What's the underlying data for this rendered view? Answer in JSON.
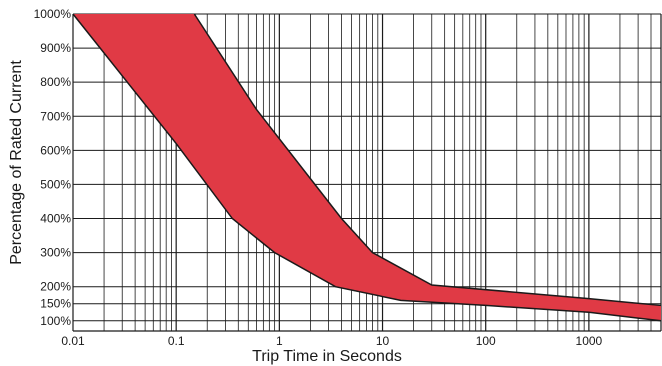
{
  "chart_data": {
    "type": "area",
    "title": "",
    "xlabel": "Trip Time in Seconds",
    "ylabel": "Percentage of Rated Current",
    "x_scale": "log",
    "xlim": [
      0.01,
      5000
    ],
    "x_ticks": [
      0.01,
      0.1,
      1,
      10,
      100,
      1000
    ],
    "x_tick_labels": [
      "0.01",
      "0.1",
      "1",
      "10",
      "100",
      "1000"
    ],
    "ylim": [
      100,
      1000
    ],
    "y_ticks": [
      100,
      150,
      200,
      300,
      400,
      500,
      600,
      700,
      800,
      900,
      1000
    ],
    "y_tick_labels": [
      "100%",
      "150%",
      "200%",
      "300%",
      "400%",
      "500%",
      "600%",
      "700%",
      "800%",
      "900%",
      "1000%"
    ],
    "grid": true,
    "fill_color": "#e03a45",
    "line_color": "#1a1a1a",
    "series": [
      {
        "values": [
          {
            "x": 0.01,
            "y": 1000
          },
          {
            "x": 0.1,
            "y": 620
          },
          {
            "x": 0.35,
            "y": 400
          },
          {
            "x": 0.9,
            "y": 300
          },
          {
            "x": 3.5,
            "y": 200
          },
          {
            "x": 15,
            "y": 160
          },
          {
            "x": 100,
            "y": 145
          },
          {
            "x": 1000,
            "y": 125
          },
          {
            "x": 5000,
            "y": 100
          }
        ]
      },
      {
        "values": [
          {
            "x": 0.15,
            "y": 1000
          },
          {
            "x": 0.6,
            "y": 720
          },
          {
            "x": 4,
            "y": 400
          },
          {
            "x": 8,
            "y": 300
          },
          {
            "x": 30,
            "y": 205
          },
          {
            "x": 1000,
            "y": 165
          },
          {
            "x": 5000,
            "y": 145
          }
        ]
      }
    ]
  }
}
